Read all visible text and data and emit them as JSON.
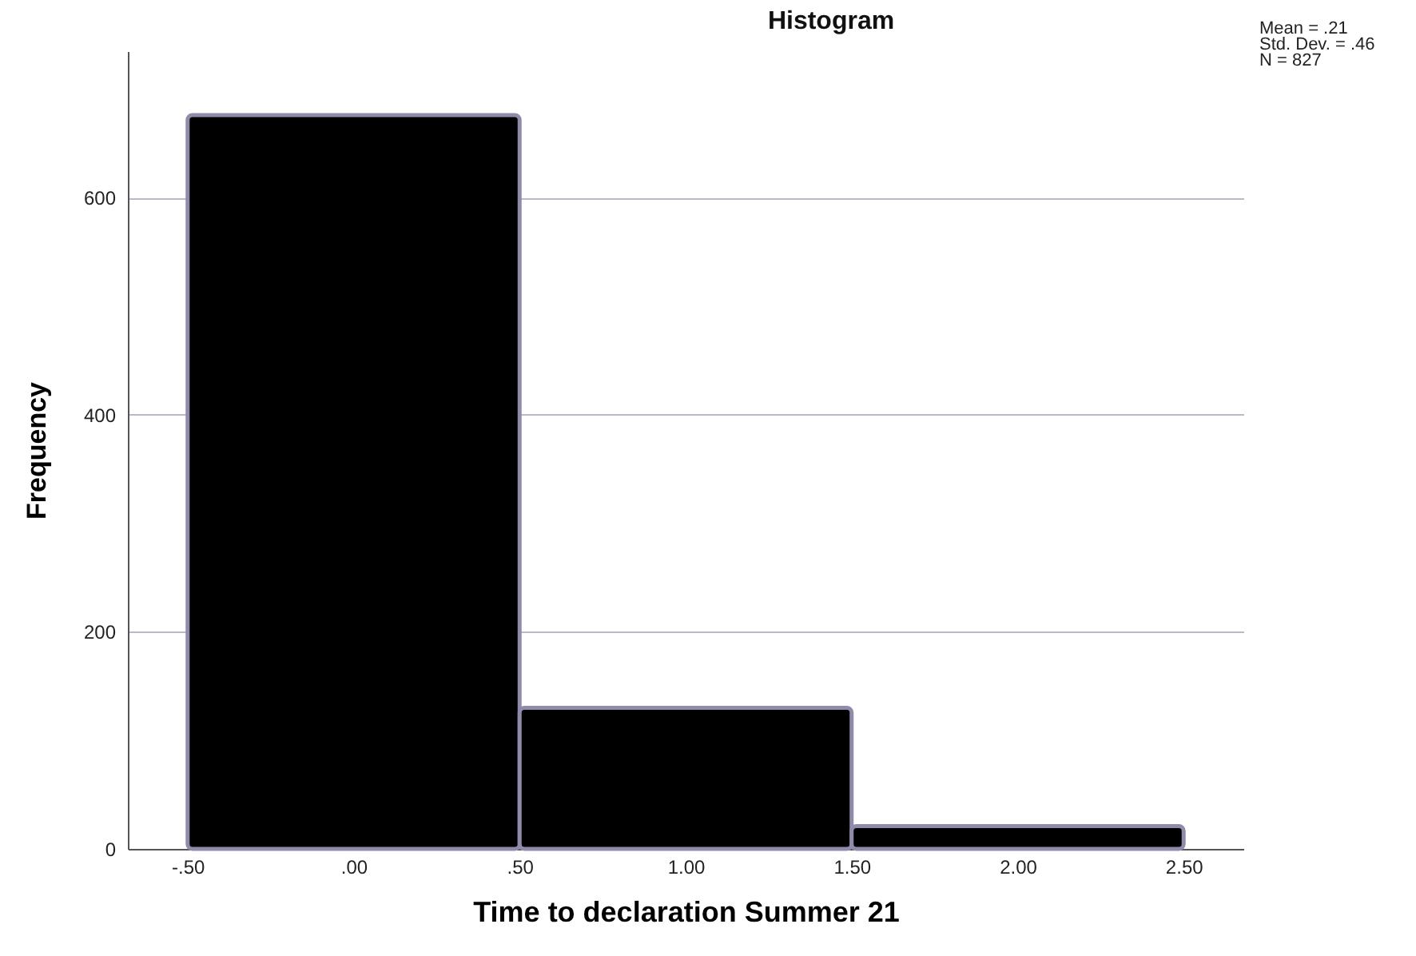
{
  "chart_data": {
    "type": "histogram",
    "title": "Histogram",
    "xlabel": "Time to declaration Summer 21",
    "ylabel": "Frequency",
    "bins": [
      -0.5,
      0.5,
      1.5,
      2.5
    ],
    "values": [
      676,
      130,
      21
    ],
    "color": "#000000",
    "xlim": [
      -0.68,
      2.68
    ],
    "xticks": [
      {
        "value": -0.5,
        "label": "-.50"
      },
      {
        "value": 0,
        "label": ".00"
      },
      {
        "value": 0.5,
        "label": ".50"
      },
      {
        "value": 1,
        "label": "1.00"
      },
      {
        "value": 1.5,
        "label": "1.50"
      },
      {
        "value": 2,
        "label": "2.00"
      },
      {
        "value": 2.5,
        "label": "2.50"
      }
    ],
    "ylim": [
      0,
      735
    ],
    "yticks": [
      0,
      200,
      400,
      600
    ],
    "grid": "y",
    "annotations": [
      "Mean = .21",
      "Std. Dev. = .46",
      "N = 827"
    ]
  }
}
